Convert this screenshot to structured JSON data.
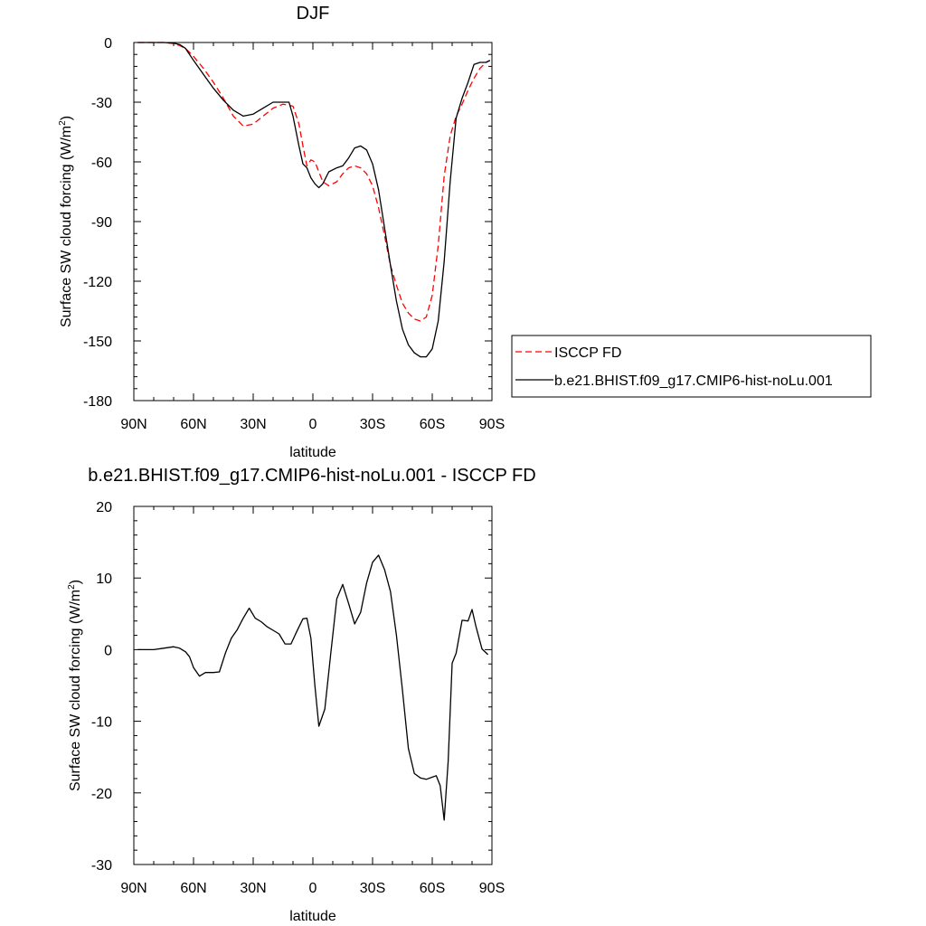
{
  "chart_data": [
    {
      "type": "line",
      "title": "DJF",
      "xlabel": "latitude",
      "ylabel_prefix": "Surface SW cloud forcing (W/m",
      "ylabel_sup": "2",
      "ylabel_suffix": ")",
      "xlim": [
        -90,
        90
      ],
      "ylim": [
        -180,
        0
      ],
      "xticks": [
        {
          "value": -90,
          "label": "90N"
        },
        {
          "value": -60,
          "label": "60N"
        },
        {
          "value": -30,
          "label": "30N"
        },
        {
          "value": 0,
          "label": "0"
        },
        {
          "value": 30,
          "label": "30S"
        },
        {
          "value": 60,
          "label": "60S"
        },
        {
          "value": 90,
          "label": "90S"
        }
      ],
      "yticks": [
        0,
        -30,
        -60,
        -90,
        -120,
        -150,
        -180
      ],
      "legend_position": "right, outside plot",
      "series": [
        {
          "name": "ISCCP FD",
          "color": "#ff0000",
          "dash": "dashed",
          "x": [
            -88,
            -80,
            -75,
            -70,
            -67,
            -64,
            -60,
            -55,
            -50,
            -45,
            -40,
            -35,
            -30,
            -25,
            -20,
            -15,
            -10,
            -7,
            -5,
            -3,
            -1,
            1,
            3,
            5,
            8,
            12,
            15,
            18,
            21,
            24,
            27,
            30,
            33,
            36,
            39,
            42,
            45,
            48,
            51,
            54,
            57,
            60,
            63,
            66,
            69,
            72,
            75,
            78,
            81,
            84,
            87,
            89
          ],
          "y": [
            0,
            0,
            0,
            -0.5,
            -1.5,
            -3,
            -7,
            -13,
            -20,
            -28,
            -37,
            -42,
            -41,
            -37,
            -33,
            -31,
            -32,
            -41,
            -52,
            -62,
            -59,
            -60,
            -65,
            -70,
            -72,
            -70,
            -66,
            -63,
            -62,
            -63,
            -66,
            -72,
            -83,
            -97,
            -112,
            -122,
            -131,
            -136,
            -139,
            -140,
            -138,
            -127,
            -102,
            -67,
            -47,
            -37,
            -31,
            -24,
            -18,
            -13,
            -10,
            -9
          ]
        },
        {
          "name": "b.e21.BHIST.f09_g17.CMIP6-hist-noLu.001",
          "color": "#000000",
          "dash": "solid",
          "x": [
            -88,
            -80,
            -75,
            -70,
            -67,
            -64,
            -60,
            -55,
            -50,
            -45,
            -40,
            -35,
            -30,
            -25,
            -20,
            -15,
            -12,
            -10,
            -7,
            -5,
            -3,
            -1,
            1,
            3,
            5,
            8,
            12,
            15,
            18,
            21,
            24,
            27,
            30,
            33,
            36,
            39,
            42,
            45,
            48,
            51,
            54,
            57,
            60,
            63,
            66,
            69,
            72,
            75,
            78,
            81,
            84,
            87,
            89
          ],
          "y": [
            0,
            0,
            0,
            -0.3,
            -1,
            -3,
            -9,
            -16,
            -23,
            -29,
            -34,
            -37,
            -36,
            -33,
            -30,
            -30,
            -30,
            -37,
            -52,
            -61,
            -63,
            -68,
            -71,
            -73,
            -71,
            -65,
            -63,
            -62,
            -58,
            -53,
            -52,
            -54,
            -61,
            -74,
            -93,
            -112,
            -130,
            -144,
            -152,
            -156,
            -158,
            -158,
            -154,
            -140,
            -110,
            -70,
            -38,
            -28,
            -20,
            -11,
            -10,
            -10,
            -9
          ]
        }
      ]
    },
    {
      "type": "line",
      "title": "b.e21.BHIST.f09_g17.CMIP6-hist-noLu.001 - ISCCP FD",
      "xlabel": "latitude",
      "ylabel_prefix": "Surface SW cloud forcing (W/m",
      "ylabel_sup": "2",
      "ylabel_suffix": ")",
      "xlim": [
        -90,
        90
      ],
      "ylim": [
        -30,
        20
      ],
      "xticks": [
        {
          "value": -90,
          "label": "90N"
        },
        {
          "value": -60,
          "label": "60N"
        },
        {
          "value": -30,
          "label": "30N"
        },
        {
          "value": 0,
          "label": "0"
        },
        {
          "value": 30,
          "label": "30S"
        },
        {
          "value": 60,
          "label": "60S"
        },
        {
          "value": 90,
          "label": "90S"
        }
      ],
      "yticks": [
        20,
        10,
        0,
        -10,
        -20,
        -30
      ],
      "series": [
        {
          "color": "#000000",
          "dash": "solid",
          "x": [
            -88,
            -80,
            -75,
            -70,
            -67,
            -64,
            -62,
            -60,
            -57,
            -54,
            -50,
            -47,
            -44,
            -41,
            -38,
            -35,
            -32,
            -29,
            -26,
            -23,
            -20,
            -17,
            -14,
            -11,
            -8,
            -5,
            -3,
            -1,
            1,
            3,
            6,
            9,
            12,
            15,
            18,
            21,
            24,
            27,
            30,
            33,
            36,
            39,
            42,
            45,
            48,
            51,
            54,
            57,
            60,
            62,
            64,
            66,
            68,
            70,
            72,
            75,
            78,
            80,
            82,
            85,
            88
          ],
          "y": [
            0,
            0,
            0.2,
            0.4,
            0.2,
            -0.3,
            -1,
            -2.5,
            -3.7,
            -3.2,
            -3.2,
            -3.1,
            -0.5,
            1.6,
            2.8,
            4.4,
            5.8,
            4.4,
            3.9,
            3.2,
            2.7,
            2.2,
            0.8,
            0.8,
            2.6,
            4.3,
            4.4,
            1.6,
            -5,
            -10.7,
            -8.3,
            -0.5,
            7.1,
            9.1,
            6.4,
            3.6,
            5.2,
            9.3,
            12.2,
            13.2,
            11.2,
            8.1,
            2,
            -5.6,
            -13.8,
            -17.3,
            -17.9,
            -18.1,
            -17.8,
            -17.6,
            -19,
            -23.8,
            -15.6,
            -1.9,
            -0.5,
            4.1,
            4,
            5.6,
            3.2,
            0.1,
            -0.7
          ]
        }
      ]
    }
  ]
}
